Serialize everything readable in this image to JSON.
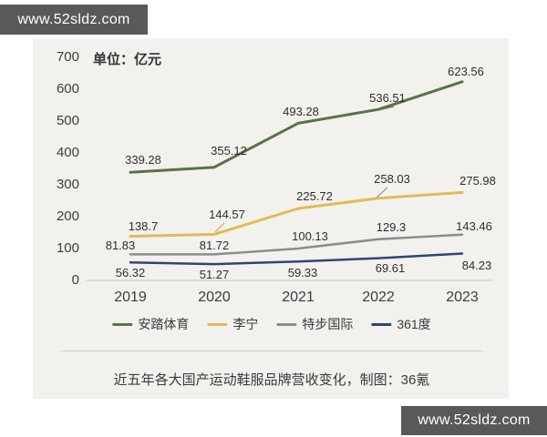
{
  "watermark": {
    "text": "www.52sldz.com"
  },
  "chart_data": {
    "type": "line",
    "title": "近五年各大国产运动鞋服品牌营收变化，制图：36氪",
    "unit_label": "单位：亿元",
    "categories": [
      "2019",
      "2020",
      "2021",
      "2022",
      "2023"
    ],
    "series": [
      {
        "name": "安踏体育",
        "color": "#5c7148",
        "values": [
          339.28,
          355.12,
          493.28,
          536.51,
          623.56
        ]
      },
      {
        "name": "李宁",
        "color": "#e2ba54",
        "values": [
          138.7,
          144.57,
          225.72,
          258.03,
          275.98
        ]
      },
      {
        "name": "特步国际",
        "color": "#8c8c8c",
        "values": [
          81.83,
          81.72,
          100.13,
          129.3,
          143.46
        ]
      },
      {
        "name": "361度",
        "color": "#2e4672",
        "values": [
          56.32,
          51.27,
          59.33,
          69.61,
          84.23
        ]
      }
    ],
    "xlabel": "",
    "ylabel": "亿元",
    "ylim": [
      0,
      700
    ],
    "yticks": [
      0,
      100,
      200,
      300,
      400,
      500,
      600,
      700
    ],
    "grid": false,
    "legend_position": "bottom",
    "colors": {
      "background": "#f2f1ee",
      "axis_line": "#d5d3d0",
      "text": "#3d3d3d",
      "watermark_bg": "#595959"
    }
  }
}
